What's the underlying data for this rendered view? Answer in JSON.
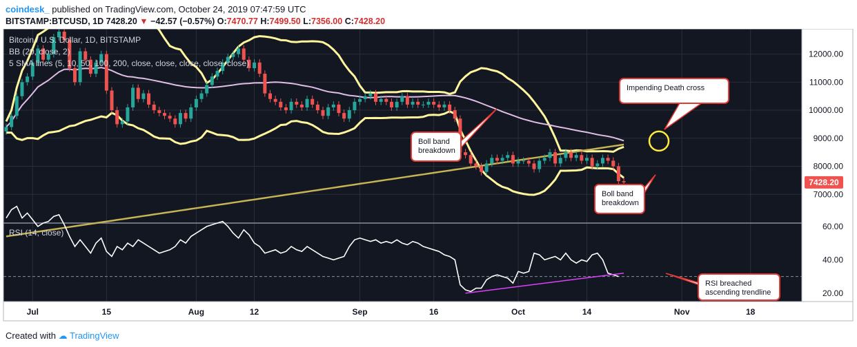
{
  "header": {
    "brand": "coindesk_",
    "published": "published on TradingView.com, October 24, 2019 07:47:59 UTC"
  },
  "symbol_bar": {
    "symbol": "BITSTAMP:BTCUSD, 1D",
    "last": "7428.20",
    "change": "−42.57 (−0.57%)",
    "o_label": "O:",
    "o": "7470.77",
    "h_label": "H:",
    "h": "7499.50",
    "l_label": "L:",
    "l": "7356.00",
    "c_label": "C:",
    "c": "7428.20"
  },
  "footer": {
    "created_with": "Created with",
    "tv": "TradingView"
  },
  "chart_data": [
    {
      "type": "candlestick",
      "legend": [
        "Bitcoin / U.S. Dollar, 1D, BITSTAMP",
        "BB (20, close, 2)",
        "5 SMA lines (5, 10, 50, 100, 200, close, close, close, close, close)"
      ],
      "y_ticks": [
        7000,
        8000,
        9000,
        10000,
        11000,
        12000
      ],
      "ylim": [
        6000,
        12800
      ],
      "last_price_label": "7428.20",
      "x_ticks": [
        {
          "day": 5,
          "label": "Jul"
        },
        {
          "day": 19,
          "label": "15"
        },
        {
          "day": 36,
          "label": "Aug"
        },
        {
          "day": 47,
          "label": "12"
        },
        {
          "day": 67,
          "label": "Sep"
        },
        {
          "day": 81,
          "label": "16"
        },
        {
          "day": 97,
          "label": "Oct"
        },
        {
          "day": 110,
          "label": "14"
        },
        {
          "day": 128,
          "label": "Nov"
        },
        {
          "day": 141,
          "label": "18"
        }
      ],
      "close": [
        9400,
        9800,
        10500,
        11000,
        11200,
        11700,
        12200,
        11800,
        12000,
        12600,
        12800,
        12500,
        11500,
        11000,
        12100,
        11800,
        11300,
        11700,
        12000,
        10700,
        10000,
        9500,
        9600,
        10100,
        10800,
        10400,
        10600,
        10200,
        10000,
        9900,
        9800,
        9700,
        9500,
        9900,
        9700,
        10100,
        10400,
        10600,
        10900,
        11200,
        11400,
        11700,
        11900,
        12000,
        12200,
        11800,
        11500,
        11700,
        11300,
        10600,
        10400,
        10300,
        10100,
        10000,
        10300,
        10200,
        10100,
        10400,
        10200,
        10000,
        9800,
        10100,
        10200,
        9900,
        9700,
        10000,
        10300,
        10400,
        10500,
        10600,
        10300,
        10400,
        10300,
        10100,
        10300,
        10500,
        10200,
        10300,
        10200,
        10200,
        10300,
        10200,
        10100,
        10200,
        10000,
        9700,
        8500,
        8400,
        8100,
        8000,
        7800,
        8100,
        8300,
        8200,
        8300,
        8400,
        8100,
        8200,
        8200,
        8100,
        7900,
        8200,
        8300,
        8500,
        8100,
        8300,
        8500,
        8300,
        8400,
        8200,
        8300,
        8000,
        8100,
        8300,
        8200,
        8000,
        7470,
        7428
      ],
      "series": [
        {
          "name": "BB",
          "color": "#fff59d"
        },
        {
          "name": "SMA 50",
          "color": "#e1bee7"
        },
        {
          "name": "SMA 200",
          "color": "#c8b454"
        }
      ],
      "annotations": [
        {
          "text": [
            "Impending Death cross"
          ]
        },
        {
          "text": [
            "Boll band",
            "breakdown"
          ]
        },
        {
          "text": [
            "Boll band",
            "breakdown"
          ]
        }
      ]
    },
    {
      "type": "line",
      "legend": "RSI (14, close)",
      "y_ticks": [
        20,
        40,
        60
      ],
      "ylim": [
        15,
        62
      ],
      "reference_line": 30,
      "values": [
        65,
        70,
        72,
        65,
        68,
        64,
        60,
        62,
        63,
        66,
        67,
        61,
        54,
        48,
        52,
        48,
        44,
        50,
        53,
        45,
        42,
        48,
        46,
        50,
        48,
        52,
        50,
        48,
        46,
        44,
        45,
        46,
        48,
        52,
        50,
        54,
        56,
        58,
        60,
        61,
        62,
        63,
        60,
        56,
        53,
        58,
        55,
        50,
        48,
        44,
        45,
        46,
        44,
        45,
        48,
        46,
        45,
        48,
        46,
        44,
        42,
        41,
        40,
        41,
        42,
        48,
        52,
        53,
        52,
        51,
        52,
        50,
        51,
        50,
        52,
        50,
        49,
        51,
        50,
        48,
        47,
        46,
        45,
        43,
        42,
        40,
        25,
        22,
        21,
        23,
        23,
        28,
        30,
        31,
        30,
        29,
        26,
        33,
        32,
        33,
        44,
        43,
        40,
        41,
        42,
        40,
        44,
        40,
        38,
        40,
        39,
        43,
        44,
        40,
        32,
        31,
        30
      ],
      "annotation": [
        "RSI breached",
        "ascending trendline"
      ]
    }
  ],
  "colors": {
    "bg": "#131722",
    "up": "#26a69a",
    "down": "#ef5350",
    "grid": "#2a2e39",
    "axis_text": "#d1d4dc",
    "rsi_line": "#ffffff",
    "rsi_trend": "#e040fb",
    "annotation_border": "#e53935"
  }
}
